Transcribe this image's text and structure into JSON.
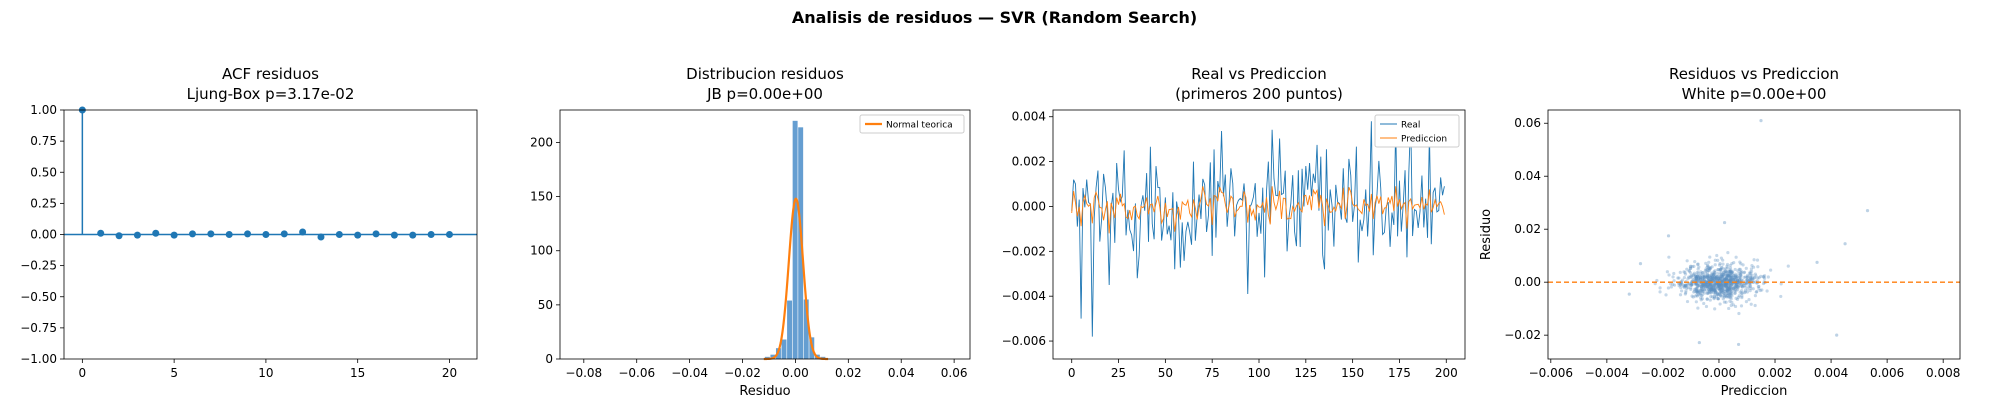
{
  "figure": {
    "suptitle": "Analisis de residuos — SVR (Random Search)"
  },
  "colors": {
    "blue": "#1f77b4",
    "orange": "#ff7f0e",
    "hist_blue": "#4a8dc9",
    "scatter_blue": "#5b8fbf"
  },
  "chart_data": [
    {
      "type": "stem",
      "title": "ACF residuos",
      "subtitle": "Ljung-Box p=3.17e-02",
      "xlabel": "",
      "ylabel": "",
      "xlim": [
        -1,
        21.5
      ],
      "ylim": [
        -1.0,
        1.0
      ],
      "xticks": [
        0,
        5,
        10,
        15,
        20
      ],
      "yticks": [
        -1.0,
        -0.75,
        -0.5,
        -0.25,
        0.0,
        0.25,
        0.5,
        0.75,
        1.0
      ],
      "ytick_labels": [
        "−1.00",
        "−0.75",
        "−0.50",
        "−0.25",
        "0.00",
        "0.25",
        "0.50",
        "0.75",
        "1.00"
      ],
      "lags": [
        0,
        1,
        2,
        3,
        4,
        5,
        6,
        7,
        8,
        9,
        10,
        11,
        12,
        13,
        14,
        15,
        16,
        17,
        18,
        19,
        20
      ],
      "values": [
        1.0,
        0.01,
        -0.01,
        -0.005,
        0.01,
        -0.005,
        0.005,
        0.005,
        0.0,
        0.005,
        0.0,
        0.005,
        0.02,
        -0.02,
        0.0,
        -0.005,
        0.005,
        -0.005,
        -0.005,
        0.0,
        0.0
      ]
    },
    {
      "type": "histogram",
      "title": "Distribucion residuos",
      "subtitle": "JB p=0.00e+00",
      "xlabel": "Residuo",
      "ylabel": "",
      "xlim": [
        -0.089,
        0.066
      ],
      "ylim": [
        0,
        230
      ],
      "xticks": [
        -0.08,
        -0.06,
        -0.04,
        -0.02,
        0.0,
        0.02,
        0.04,
        0.06
      ],
      "xtick_labels": [
        "−0.08",
        "−0.06",
        "−0.04",
        "−0.02",
        "0.00",
        "0.02",
        "0.04",
        "0.06"
      ],
      "yticks": [
        0,
        50,
        100,
        150,
        200
      ],
      "bin_width": 0.0021,
      "bins": [
        {
          "x": -0.0105,
          "count": 2
        },
        {
          "x": -0.0084,
          "count": 4
        },
        {
          "x": -0.0063,
          "count": 10
        },
        {
          "x": -0.0042,
          "count": 18
        },
        {
          "x": -0.0021,
          "count": 54
        },
        {
          "x": 0.0,
          "count": 220
        },
        {
          "x": 0.0021,
          "count": 214
        },
        {
          "x": 0.0042,
          "count": 55
        },
        {
          "x": 0.0063,
          "count": 20
        },
        {
          "x": 0.0084,
          "count": 4
        },
        {
          "x": 0.0105,
          "count": 2
        }
      ],
      "normal_curve": {
        "name": "Normal teorica",
        "mean": 0.0002,
        "sd": 0.0027,
        "peak": 148
      },
      "legend": "top-right"
    },
    {
      "type": "line",
      "title": "Real vs Prediccion",
      "subtitle": "(primeros 200 puntos)",
      "xlabel": "",
      "ylabel": "",
      "xlim": [
        -10,
        210
      ],
      "ylim": [
        -0.0068,
        0.0043
      ],
      "xticks": [
        0,
        25,
        50,
        75,
        100,
        125,
        150,
        175,
        200
      ],
      "yticks": [
        -0.006,
        -0.004,
        -0.002,
        0.0,
        0.002,
        0.004
      ],
      "ytick_labels": [
        "−0.006",
        "−0.004",
        "−0.002",
        "0.000",
        "0.002",
        "0.004"
      ],
      "legend": "top-right",
      "series": [
        {
          "name": "Real",
          "color": "#1f77b4",
          "anchor_points": [
            [
              0,
              -0.0002
            ],
            [
              2,
              0.001
            ],
            [
              5,
              -0.005
            ],
            [
              8,
              0.0012
            ],
            [
              11,
              -0.0058
            ],
            [
              14,
              0.0016
            ],
            [
              20,
              -0.0035
            ],
            [
              28,
              0.0025
            ],
            [
              35,
              -0.0032
            ],
            [
              45,
              0.0018
            ],
            [
              55,
              -0.0028
            ],
            [
              65,
              0.002
            ],
            [
              75,
              -0.0022
            ],
            [
              85,
              0.0017
            ],
            [
              94,
              -0.0039
            ],
            [
              105,
              0.002
            ],
            [
              115,
              -0.002
            ],
            [
              125,
              0.0018
            ],
            [
              135,
              -0.0028
            ],
            [
              145,
              0.0017
            ],
            [
              153,
              -0.0025
            ],
            [
              160,
              0.0038
            ],
            [
              170,
              -0.0018
            ],
            [
              180,
              0.0015
            ],
            [
              190,
              -0.0014
            ],
            [
              199,
              0.0009
            ]
          ],
          "amplitude": 0.0015
        },
        {
          "name": "Prediccion",
          "color": "#ff7f0e",
          "amplitude": 0.0006
        }
      ]
    },
    {
      "type": "scatter",
      "title": "Residuos vs Prediccion",
      "subtitle": "White p=0.00e+00",
      "xlabel": "Prediccion",
      "ylabel": "Residuo",
      "xlim": [
        -0.0061,
        0.0086
      ],
      "ylim": [
        -0.029,
        0.065
      ],
      "xticks": [
        -0.006,
        -0.004,
        -0.002,
        0.0,
        0.002,
        0.004,
        0.006,
        0.008
      ],
      "xtick_labels": [
        "−0.006",
        "−0.004",
        "−0.002",
        "0.000",
        "0.002",
        "0.004",
        "0.006",
        "0.008"
      ],
      "yticks": [
        -0.02,
        0.0,
        0.02,
        0.04,
        0.06
      ],
      "ytick_labels": [
        "−0.02",
        "0.00",
        "0.02",
        "0.04",
        "0.06"
      ],
      "reference_line_y": 0.0,
      "cluster": {
        "center": [
          0.0,
          0.0
        ],
        "sd_x": 0.0007,
        "sd_y": 0.0035,
        "n": 900
      },
      "outliers": [
        [
          0.0015,
          0.061
        ],
        [
          0.0053,
          0.027
        ],
        [
          0.0042,
          -0.02
        ],
        [
          -0.0018,
          0.0175
        ],
        [
          0.0002,
          0.0225
        ],
        [
          0.0007,
          -0.0235
        ],
        [
          -0.0007,
          -0.0228
        ],
        [
          0.0045,
          0.0145
        ],
        [
          0.0035,
          0.0075
        ],
        [
          -0.0032,
          -0.0045
        ],
        [
          -0.0028,
          0.007
        ]
      ]
    }
  ]
}
